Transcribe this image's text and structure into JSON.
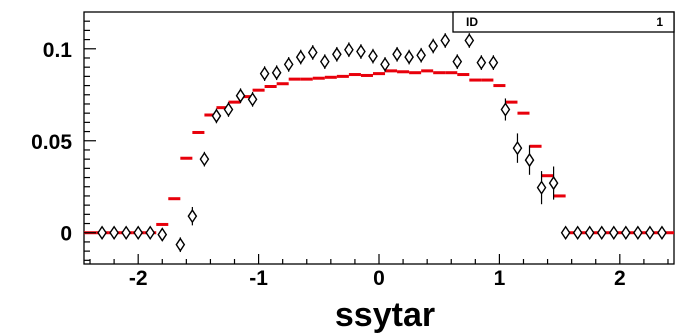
{
  "chart_data": {
    "type": "scatter",
    "title": "",
    "xlabel": "ssytar",
    "ylabel": "",
    "xlim": [
      -2.45,
      2.45
    ],
    "ylim": [
      -0.017,
      0.12
    ],
    "xticks": [
      -2,
      -1,
      0,
      1,
      2
    ],
    "yticks": [
      0,
      0.05,
      0.1
    ],
    "xtick_labels": [
      "-2",
      "-1",
      "0",
      "1",
      "2"
    ],
    "ytick_labels": [
      "0",
      "0.05",
      "0.1"
    ],
    "grid": false,
    "stats_box": {
      "label": "ID",
      "value": "1"
    },
    "series": [
      {
        "style": "histogram-steps",
        "color": "#e8000b",
        "bin_width": 0.1,
        "x": [
          -2.4,
          -2.3,
          -2.2,
          -2.1,
          -2.0,
          -1.9,
          -1.8,
          -1.7,
          -1.6,
          -1.5,
          -1.4,
          -1.3,
          -1.2,
          -1.1,
          -1.0,
          -0.9,
          -0.8,
          -0.7,
          -0.6,
          -0.5,
          -0.4,
          -0.3,
          -0.2,
          -0.1,
          0.0,
          0.1,
          0.2,
          0.3,
          0.4,
          0.5,
          0.6,
          0.7,
          0.8,
          0.9,
          1.0,
          1.1,
          1.2,
          1.3,
          1.4,
          1.5,
          1.6,
          1.7,
          1.8,
          1.9,
          2.0,
          2.1,
          2.2,
          2.3,
          2.4
        ],
        "y": [
          0,
          0,
          0,
          0,
          0,
          0,
          0.0045,
          0.0185,
          0.0405,
          0.0545,
          0.064,
          0.068,
          0.071,
          0.074,
          0.0775,
          0.0795,
          0.081,
          0.0835,
          0.0835,
          0.084,
          0.0845,
          0.085,
          0.086,
          0.0855,
          0.0865,
          0.088,
          0.0875,
          0.087,
          0.088,
          0.087,
          0.087,
          0.086,
          0.083,
          0.083,
          0.08,
          0.071,
          0.065,
          0.047,
          0.031,
          0.02,
          0,
          0,
          0,
          0,
          0,
          0,
          0,
          0,
          0
        ]
      },
      {
        "style": "diamond-markers",
        "color": "#000000",
        "x": [
          -2.3,
          -2.2,
          -2.1,
          -2.0,
          -1.9,
          -1.8,
          -1.65,
          -1.55,
          -1.45,
          -1.35,
          -1.25,
          -1.15,
          -1.05,
          -0.95,
          -0.85,
          -0.75,
          -0.65,
          -0.55,
          -0.45,
          -0.35,
          -0.25,
          -0.15,
          -0.05,
          0.05,
          0.15,
          0.25,
          0.35,
          0.45,
          0.55,
          0.65,
          0.75,
          0.85,
          0.95,
          1.05,
          1.15,
          1.25,
          1.35,
          1.45,
          1.55,
          1.65,
          1.75,
          1.85,
          1.95,
          2.05,
          2.15,
          2.25,
          2.35
        ],
        "y": [
          0,
          0,
          0,
          0,
          0,
          -0.001,
          -0.0065,
          0.009,
          0.04,
          0.0635,
          0.067,
          0.0745,
          0.0725,
          0.0865,
          0.087,
          0.0915,
          0.0955,
          0.098,
          0.093,
          0.097,
          0.0995,
          0.0985,
          0.096,
          0.0915,
          0.097,
          0.0955,
          0.0965,
          0.1015,
          0.1045,
          0.093,
          0.1045,
          0.0925,
          0.0925,
          0.067,
          0.046,
          0.0395,
          0.0245,
          0.027,
          0,
          0,
          0,
          0,
          0,
          0,
          0,
          0,
          0
        ],
        "yerr": [
          0,
          0,
          0,
          0,
          0,
          0.003,
          0.004,
          0.005,
          0.004,
          0.004,
          0.004,
          0.004,
          0.004,
          0.004,
          0.004,
          0.004,
          0.004,
          0.004,
          0.004,
          0.004,
          0.004,
          0.004,
          0.004,
          0.004,
          0.004,
          0.004,
          0.004,
          0.004,
          0.004,
          0.004,
          0.004,
          0.004,
          0.004,
          0.006,
          0.008,
          0.008,
          0.009,
          0.009,
          0,
          0,
          0,
          0,
          0,
          0,
          0,
          0,
          0
        ]
      }
    ]
  }
}
